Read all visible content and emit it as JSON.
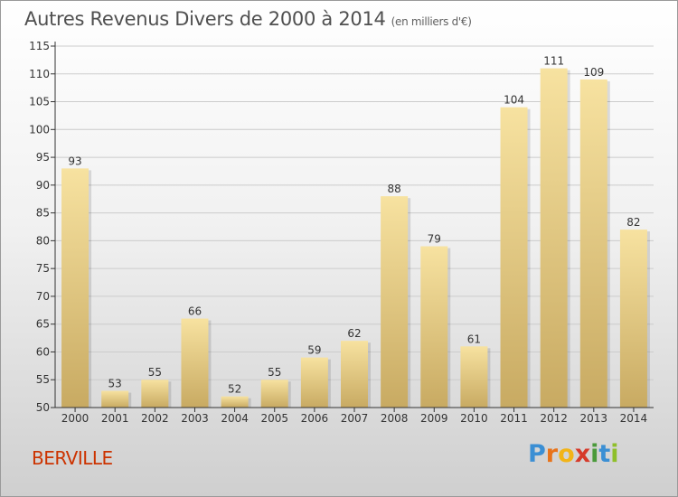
{
  "title": {
    "main": "Autres Revenus Divers de 2000 à 2014",
    "unit": "(en milliers d'€)"
  },
  "place": "BERVILLE",
  "logo": {
    "letters": [
      "P",
      "r",
      "o",
      "x",
      "i",
      "t",
      "i"
    ],
    "colors": [
      "#3b8fd4",
      "#e8731a",
      "#f2b418",
      "#d63a2a",
      "#4a9a3b",
      "#3b8fd4",
      "#8fbf2a"
    ]
  },
  "colors": {
    "bar_light": "#f7e2a0",
    "bar_dark": "#c8aa62",
    "grid": "#cccccc",
    "axis": "#333333",
    "text": "#333333"
  },
  "chart_data": {
    "type": "bar",
    "categories": [
      "2000",
      "2001",
      "2002",
      "2003",
      "2004",
      "2005",
      "2006",
      "2007",
      "2008",
      "2009",
      "2010",
      "2011",
      "2012",
      "2013",
      "2014"
    ],
    "values": [
      93,
      53,
      55,
      66,
      52,
      55,
      59,
      62,
      88,
      79,
      61,
      104,
      111,
      109,
      82
    ],
    "ylim": [
      50,
      115
    ],
    "yticks": [
      50,
      55,
      60,
      65,
      70,
      75,
      80,
      85,
      90,
      95,
      100,
      105,
      110,
      115
    ],
    "grid": true,
    "data_labels": true
  }
}
